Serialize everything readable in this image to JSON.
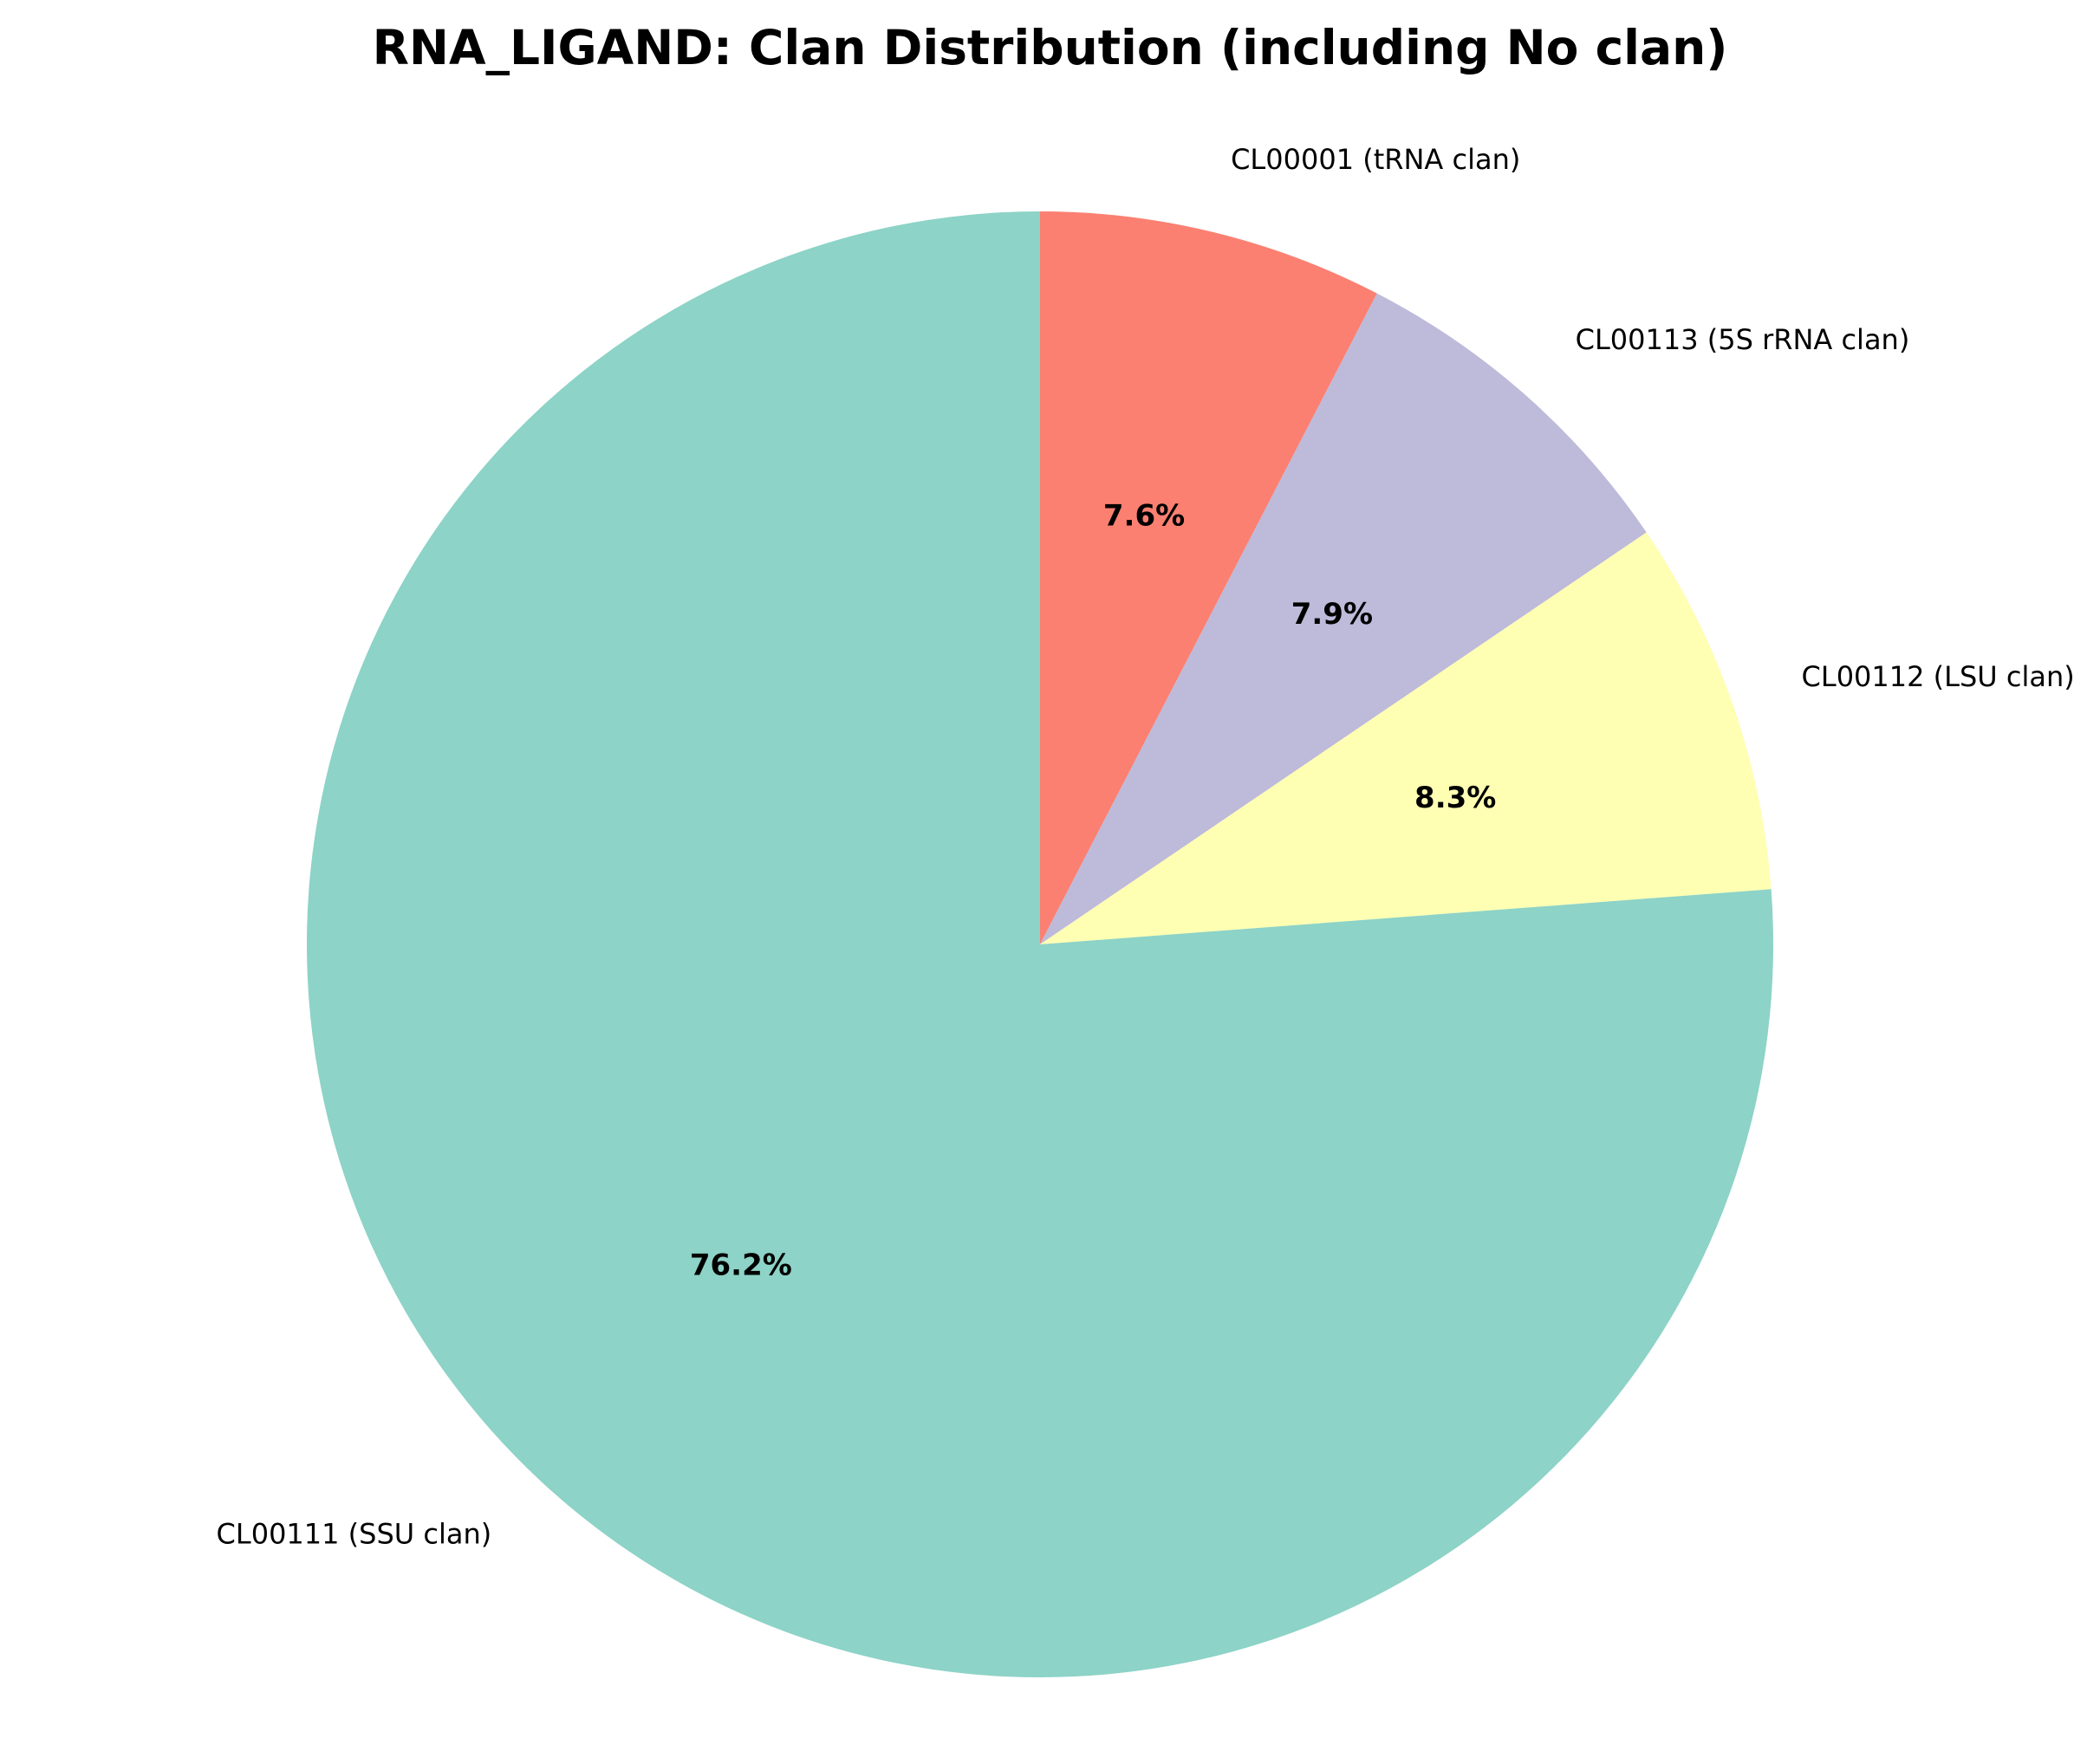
{
  "chart_data": {
    "type": "pie",
    "title": "RNA_LIGAND: Clan Distribution (including No clan)",
    "start_angle_deg": 90,
    "direction": "clockwise",
    "slices": [
      {
        "label": "CL00001 (tRNA clan)",
        "value": 7.6,
        "pct_label": "7.6%",
        "color": "#fb8072"
      },
      {
        "label": "CL00113 (5S rRNA clan)",
        "value": 7.9,
        "pct_label": "7.9%",
        "color": "#bebada"
      },
      {
        "label": "CL00112 (LSU clan)",
        "value": 8.3,
        "pct_label": "8.3%",
        "color": "#ffffb3"
      },
      {
        "label": "CL00111 (SSU clan)",
        "value": 76.2,
        "pct_label": "76.2%",
        "color": "#8dd3c7"
      }
    ]
  }
}
